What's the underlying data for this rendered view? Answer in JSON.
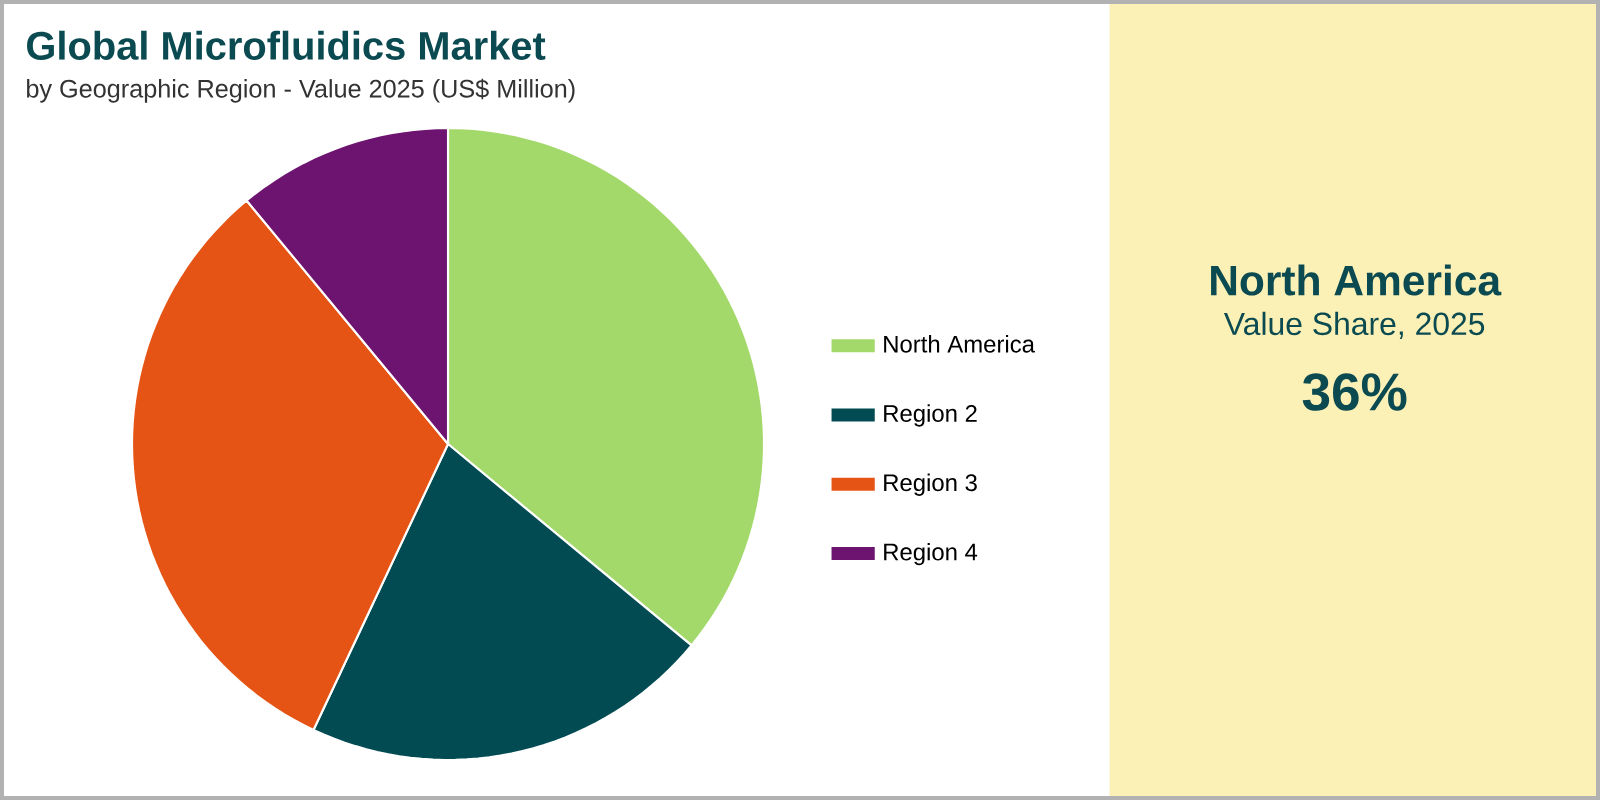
{
  "chart_data": {
    "type": "pie",
    "title": "Global Microfluidics Market",
    "subtitle": "by Geographic Region - Value 2025 (US$ Million)",
    "categories": [
      "North America",
      "Region 2",
      "Region 3",
      "Region 4"
    ],
    "values": [
      36,
      21,
      32,
      11
    ],
    "colors": [
      "#a3d86a",
      "#034b53",
      "#e55414",
      "#6d1470"
    ],
    "legend": "right",
    "annotations": [
      "North America",
      "Value Share, 2025",
      "36%"
    ]
  }
}
